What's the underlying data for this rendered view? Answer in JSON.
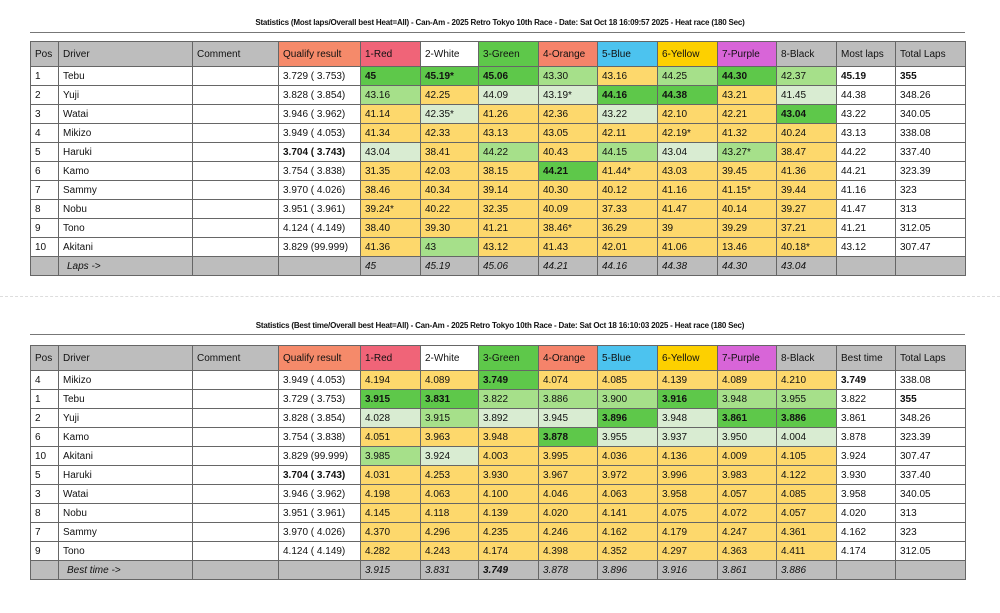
{
  "header_colors": {
    "pos": "#bdbdbd",
    "qualify": "#f58a6a",
    "1-Red": "#f06478",
    "2-White": "#ffffff",
    "3-Green": "#5ec84a",
    "4-Orange": "#f5836a",
    "5-Blue": "#4cc3ef",
    "6-Yellow": "#fdd000",
    "7-Purple": "#d865d8",
    "8-Black": "#bdbdbd"
  },
  "tables": [
    {
      "title": "Statistics (Most laps/Overall best Heat=All) - Can-Am - 2025 Retro Tokyo 10th Race - Date: Sat Oct 18 16:09:57 2025 - Heat race (180 Sec)",
      "columns": [
        "Pos",
        "Driver",
        "Comment",
        "Qualify result",
        "1-Red",
        "2-White",
        "3-Green",
        "4-Orange",
        "5-Blue",
        "6-Yellow",
        "7-Purple",
        "8-Black",
        "Most laps",
        "Total Laps"
      ],
      "rows": [
        {
          "pos": "1",
          "driver": "Tebu",
          "comment": "",
          "qualify": "3.729 ( 3.753)",
          "lanes": [
            "45",
            "45.19*",
            "45.06",
            "43.30",
            "43.16",
            "44.25",
            "44.30",
            "42.37"
          ],
          "colors": "DDDLYLDL",
          "bold": "11100010",
          "summary": "45.19",
          "total": "355",
          "sb": true,
          "tb": true
        },
        {
          "pos": "2",
          "driver": "Yuji",
          "comment": "",
          "qualify": "3.828 ( 3.854)",
          "lanes": [
            "43.16",
            "42.25",
            "44.09",
            "43.19*",
            "44.16",
            "44.38",
            "43.21",
            "41.45"
          ],
          "colors": "LYPPDDYP",
          "bold": "00001100",
          "summary": "44.38",
          "total": "348.26"
        },
        {
          "pos": "3",
          "driver": "Watai",
          "comment": "",
          "qualify": "3.946 ( 3.962)",
          "lanes": [
            "41.14",
            "42.35*",
            "41.26",
            "42.36",
            "43.22",
            "42.10",
            "42.21",
            "43.04"
          ],
          "colors": "YPYYPYYD",
          "bold": "00000001",
          "summary": "43.22",
          "total": "340.05"
        },
        {
          "pos": "4",
          "driver": "Mikizo",
          "comment": "",
          "qualify": "3.949 ( 4.053)",
          "lanes": [
            "41.34",
            "42.33",
            "43.13",
            "43.05",
            "42.11",
            "42.19*",
            "41.32",
            "40.24"
          ],
          "colors": "YYYYYYYY",
          "bold": "00000000",
          "summary": "43.13",
          "total": "338.08"
        },
        {
          "pos": "5",
          "driver": "Haruki",
          "comment": "",
          "qualify": "3.704 ( 3.743)",
          "qb": true,
          "lanes": [
            "43.04",
            "38.41",
            "44.22",
            "40.43",
            "44.15",
            "43.04",
            "43.27*",
            "38.47"
          ],
          "colors": "PYLYLPLY",
          "bold": "00000000",
          "summary": "44.22",
          "total": "337.40"
        },
        {
          "pos": "6",
          "driver": "Kamo",
          "comment": "",
          "qualify": "3.754 ( 3.838)",
          "lanes": [
            "31.35",
            "42.03",
            "38.15",
            "44.21",
            "41.44*",
            "43.03",
            "39.45",
            "41.36"
          ],
          "colors": "YYYDYYYY",
          "bold": "00010000",
          "summary": "44.21",
          "total": "323.39"
        },
        {
          "pos": "7",
          "driver": "Sammy",
          "comment": "",
          "qualify": "3.970 ( 4.026)",
          "lanes": [
            "38.46",
            "40.34",
            "39.14",
            "40.30",
            "40.12",
            "41.16",
            "41.15*",
            "39.44"
          ],
          "colors": "YYYYYYYY",
          "bold": "00000000",
          "summary": "41.16",
          "total": "323"
        },
        {
          "pos": "8",
          "driver": "Nobu",
          "comment": "",
          "qualify": "3.951 ( 3.961)",
          "lanes": [
            "39.24*",
            "40.22",
            "32.35",
            "40.09",
            "37.33",
            "41.47",
            "40.14",
            "39.27"
          ],
          "colors": "YYYYYYYY",
          "bold": "00000000",
          "summary": "41.47",
          "total": "313"
        },
        {
          "pos": "9",
          "driver": "Tono",
          "comment": "",
          "qualify": "4.124 ( 4.149)",
          "lanes": [
            "38.40",
            "39.30",
            "41.21",
            "38.46*",
            "36.29",
            "39",
            "39.29",
            "37.21"
          ],
          "colors": "YYYYYYYY",
          "bold": "00000000",
          "summary": "41.21",
          "total": "312.05"
        },
        {
          "pos": "10",
          "driver": "Akitani",
          "comment": "",
          "qualify": "3.829 (99.999)",
          "lanes": [
            "41.36",
            "43",
            "43.12",
            "41.43",
            "42.01",
            "41.06",
            "13.46",
            "40.18*"
          ],
          "colors": "YLYYYYYY",
          "bold": "00000000",
          "summary": "43.12",
          "total": "307.47"
        }
      ],
      "footer": {
        "label": "Laps ->",
        "values": [
          "45",
          "45.19",
          "45.06",
          "44.21",
          "44.16",
          "44.38",
          "44.30",
          "43.04"
        ]
      }
    },
    {
      "title": "Statistics (Best time/Overall best Heat=All) - Can-Am - 2025 Retro Tokyo 10th Race - Date: Sat Oct 18 16:10:03 2025 - Heat race (180 Sec)",
      "columns": [
        "Pos",
        "Driver",
        "Comment",
        "Qualify result",
        "1-Red",
        "2-White",
        "3-Green",
        "4-Orange",
        "5-Blue",
        "6-Yellow",
        "7-Purple",
        "8-Black",
        "Best time",
        "Total Laps"
      ],
      "rows": [
        {
          "pos": "4",
          "driver": "Mikizo",
          "comment": "",
          "qualify": "3.949 ( 4.053)",
          "lanes": [
            "4.194",
            "4.089",
            "3.749",
            "4.074",
            "4.085",
            "4.139",
            "4.089",
            "4.210"
          ],
          "colors": "YYDYYYYY",
          "bold": "00100000",
          "summary": "3.749",
          "total": "338.08",
          "sb": true
        },
        {
          "pos": "1",
          "driver": "Tebu",
          "comment": "",
          "qualify": "3.729 ( 3.753)",
          "lanes": [
            "3.915",
            "3.831",
            "3.822",
            "3.886",
            "3.900",
            "3.916",
            "3.948",
            "3.955"
          ],
          "colors": "DDLLLDLL",
          "bold": "11000100",
          "summary": "3.822",
          "total": "355",
          "tb": true
        },
        {
          "pos": "2",
          "driver": "Yuji",
          "comment": "",
          "qualify": "3.828 ( 3.854)",
          "lanes": [
            "4.028",
            "3.915",
            "3.892",
            "3.945",
            "3.896",
            "3.948",
            "3.861",
            "3.886"
          ],
          "colors": "PLPPDPDD",
          "bold": "00001011",
          "summary": "3.861",
          "total": "348.26"
        },
        {
          "pos": "6",
          "driver": "Kamo",
          "comment": "",
          "qualify": "3.754 ( 3.838)",
          "lanes": [
            "4.051",
            "3.963",
            "3.948",
            "3.878",
            "3.955",
            "3.937",
            "3.950",
            "4.004"
          ],
          "colors": "YYYDPPPP",
          "bold": "00010000",
          "summary": "3.878",
          "total": "323.39"
        },
        {
          "pos": "10",
          "driver": "Akitani",
          "comment": "",
          "qualify": "3.829 (99.999)",
          "lanes": [
            "3.985",
            "3.924",
            "4.003",
            "3.995",
            "4.036",
            "4.136",
            "4.009",
            "4.105"
          ],
          "colors": "LPYYYYYY",
          "bold": "00000000",
          "summary": "3.924",
          "total": "307.47"
        },
        {
          "pos": "5",
          "driver": "Haruki",
          "comment": "",
          "qualify": "3.704 ( 3.743)",
          "qb": true,
          "lanes": [
            "4.031",
            "4.253",
            "3.930",
            "3.967",
            "3.972",
            "3.996",
            "3.983",
            "4.122"
          ],
          "colors": "YYYYYYYY",
          "bold": "00000000",
          "summary": "3.930",
          "total": "337.40"
        },
        {
          "pos": "3",
          "driver": "Watai",
          "comment": "",
          "qualify": "3.946 ( 3.962)",
          "lanes": [
            "4.198",
            "4.063",
            "4.100",
            "4.046",
            "4.063",
            "3.958",
            "4.057",
            "4.085"
          ],
          "colors": "YYYYYYYY",
          "bold": "00000000",
          "summary": "3.958",
          "total": "340.05"
        },
        {
          "pos": "8",
          "driver": "Nobu",
          "comment": "",
          "qualify": "3.951 ( 3.961)",
          "lanes": [
            "4.145",
            "4.118",
            "4.139",
            "4.020",
            "4.141",
            "4.075",
            "4.072",
            "4.057"
          ],
          "colors": "YYYYYYYY",
          "bold": "00000000",
          "summary": "4.020",
          "total": "313"
        },
        {
          "pos": "7",
          "driver": "Sammy",
          "comment": "",
          "qualify": "3.970 ( 4.026)",
          "lanes": [
            "4.370",
            "4.296",
            "4.235",
            "4.246",
            "4.162",
            "4.179",
            "4.247",
            "4.361"
          ],
          "colors": "YYYYYYYY",
          "bold": "00000000",
          "summary": "4.162",
          "total": "323"
        },
        {
          "pos": "9",
          "driver": "Tono",
          "comment": "",
          "qualify": "4.124 ( 4.149)",
          "lanes": [
            "4.282",
            "4.243",
            "4.174",
            "4.398",
            "4.352",
            "4.297",
            "4.363",
            "4.411"
          ],
          "colors": "YYYYYYYY",
          "bold": "00000000",
          "summary": "4.174",
          "total": "312.05"
        }
      ],
      "footer": {
        "label": "Best time ->",
        "values": [
          "3.915",
          "3.831",
          "3.749",
          "3.878",
          "3.896",
          "3.916",
          "3.861",
          "3.886"
        ]
      }
    }
  ]
}
